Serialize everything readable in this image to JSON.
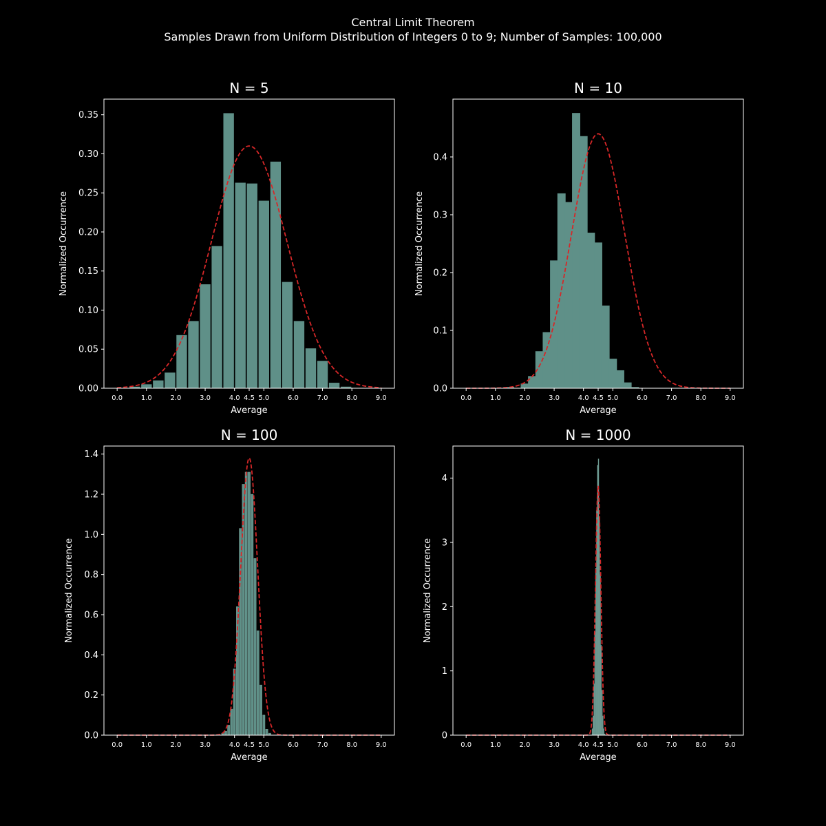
{
  "figure": {
    "title": "Central Limit Theorem",
    "subtitle": "Samples Drawn from Uniform Distribution of Integers 0 to 9; Number of Samples: 100,000"
  },
  "colors": {
    "background": "#000000",
    "bar": "#5f9088",
    "fit_line": "#d62728",
    "axis": "#ffffff"
  },
  "chart_data": [
    {
      "type": "bar",
      "title": "N = 5",
      "xlabel": "Average",
      "ylabel": "Normalized Occurrence",
      "xlim": [
        -0.45,
        9.45
      ],
      "ylim": [
        0,
        0.37
      ],
      "xticks": [
        0,
        1,
        2,
        3,
        4,
        4.5,
        5,
        6,
        7,
        8,
        9
      ],
      "xtick_labels": [
        "0.0",
        "1.0",
        "2.0",
        "3.0",
        "4.0",
        "4.5",
        "5.0",
        "6.0",
        "7.0",
        "8.0",
        "9.0"
      ],
      "yticks": [
        0,
        0.05,
        0.1,
        0.15,
        0.2,
        0.25,
        0.3,
        0.35
      ],
      "ytick_labels": [
        "0.00",
        "0.05",
        "0.10",
        "0.15",
        "0.20",
        "0.25",
        "0.30",
        "0.35"
      ],
      "bar_width": 0.36,
      "x": [
        0.0,
        0.2,
        0.4,
        0.6,
        0.8,
        1.0,
        1.2,
        1.4,
        1.6,
        1.8,
        2.0,
        2.2,
        2.4,
        2.6,
        2.8,
        3.0,
        3.2,
        3.4,
        3.6,
        3.8,
        4.0,
        4.2,
        4.4,
        4.6,
        4.8,
        5.0,
        5.2,
        5.4,
        5.6,
        5.8,
        6.0,
        6.2,
        6.4,
        6.6,
        6.8,
        7.0,
        7.2,
        7.4,
        7.6,
        7.8,
        8.0,
        8.2,
        8.4,
        8.6,
        8.8,
        9.0
      ],
      "values": [
        0.0,
        0.0,
        0.0,
        0.002,
        0.0,
        0.005,
        0.0,
        0.01,
        0.0,
        0.02,
        0.0,
        0.068,
        0.0,
        0.086,
        0.0,
        0.133,
        0.0,
        0.182,
        0.0,
        0.352,
        0.0,
        0.263,
        0.0,
        0.262,
        0.0,
        0.24,
        0.0,
        0.29,
        0.0,
        0.136,
        0.0,
        0.086,
        0.0,
        0.051,
        0.0,
        0.035,
        0.0,
        0.007,
        0.0,
        0.002,
        0.0,
        0.0,
        0.0,
        0.0,
        0.0,
        0.0
      ],
      "fit": {
        "type": "normal",
        "mean": 4.5,
        "std": 1.285,
        "peak": 0.31
      }
    },
    {
      "type": "bar",
      "title": "N = 10",
      "xlabel": "Average",
      "ylabel": "Normalized Occurrence",
      "xlim": [
        -0.45,
        9.45
      ],
      "ylim": [
        0,
        0.5
      ],
      "xticks": [
        0,
        1,
        2,
        3,
        4,
        4.5,
        5,
        6,
        7,
        8,
        9
      ],
      "xtick_labels": [
        "0.0",
        "1.0",
        "2.0",
        "3.0",
        "4.0",
        "4.5",
        "5.0",
        "6.0",
        "7.0",
        "8.0",
        "9.0"
      ],
      "yticks": [
        0,
        0.1,
        0.2,
        0.3,
        0.4
      ],
      "ytick_labels": [
        "0.0",
        "0.1",
        "0.2",
        "0.3",
        "0.4"
      ],
      "bar_width": 0.28,
      "x": [
        1.5,
        1.75,
        2.0,
        2.25,
        2.5,
        2.75,
        3.0,
        3.25,
        3.5,
        3.75,
        4.0,
        4.25,
        4.5,
        4.75,
        5.0,
        5.25,
        5.5,
        5.75,
        6.0,
        6.25,
        6.5,
        6.75,
        7.0,
        7.25
      ],
      "values": [
        0.002,
        0.0,
        0.008,
        0.021,
        0.064,
        0.097,
        0.221,
        0.337,
        0.322,
        0.476,
        0.436,
        0.269,
        0.252,
        0.143,
        0.051,
        0.031,
        0.01,
        0.002,
        0.0,
        0.0,
        0.0,
        0.0,
        0.0,
        0.0
      ],
      "x_offset": 0.25,
      "fit": {
        "type": "normal",
        "mean": 4.5,
        "std": 0.908,
        "peak": 0.44
      }
    },
    {
      "type": "bar",
      "title": "N = 100",
      "xlabel": "Average",
      "ylabel": "Normalized Occurrence",
      "xlim": [
        -0.45,
        9.45
      ],
      "ylim": [
        0,
        1.44
      ],
      "xticks": [
        0,
        1,
        2,
        3,
        4,
        4.5,
        5,
        6,
        7,
        8,
        9
      ],
      "xtick_labels": [
        "0.0",
        "1.0",
        "2.0",
        "3.0",
        "4.0",
        "4.5",
        "5.0",
        "6.0",
        "7.0",
        "8.0",
        "9.0"
      ],
      "yticks": [
        0,
        0.2,
        0.4,
        0.6,
        0.8,
        1.0,
        1.2,
        1.4
      ],
      "ytick_labels": [
        "0.0",
        "0.2",
        "0.4",
        "0.6",
        "0.8",
        "1.0",
        "1.2",
        "1.4"
      ],
      "bar_width": 0.08,
      "x": [
        3.6,
        3.7,
        3.8,
        3.9,
        4.0,
        4.1,
        4.2,
        4.3,
        4.4,
        4.5,
        4.6,
        4.7,
        4.8,
        4.9,
        5.0,
        5.1,
        5.2,
        5.3,
        5.4
      ],
      "values": [
        0.01,
        0.02,
        0.05,
        0.13,
        0.33,
        0.64,
        1.03,
        1.25,
        1.31,
        1.31,
        1.2,
        0.88,
        0.52,
        0.25,
        0.1,
        0.03,
        0.01,
        0.0,
        0.0
      ],
      "fit": {
        "type": "normal",
        "mean": 4.5,
        "std": 0.289,
        "peak": 1.38
      }
    },
    {
      "type": "bar",
      "title": "N = 1000",
      "xlabel": "Average",
      "ylabel": "Normalized Occurrence",
      "xlim": [
        -0.45,
        9.45
      ],
      "ylim": [
        0,
        4.5
      ],
      "xticks": [
        0,
        1,
        2,
        3,
        4,
        4.5,
        5,
        6,
        7,
        8,
        9
      ],
      "xtick_labels": [
        "0.0",
        "1.0",
        "2.0",
        "3.0",
        "4.0",
        "4.5",
        "5.0",
        "6.0",
        "7.0",
        "8.0",
        "9.0"
      ],
      "yticks": [
        0,
        1,
        2,
        3,
        4
      ],
      "ytick_labels": [
        "0",
        "1",
        "2",
        "3",
        "4"
      ],
      "bar_width": 0.02,
      "x": [
        4.3,
        4.33,
        4.36,
        4.39,
        4.42,
        4.45,
        4.48,
        4.51,
        4.54,
        4.57,
        4.6,
        4.63,
        4.66,
        4.69,
        4.72
      ],
      "values": [
        0.1,
        0.3,
        0.8,
        1.6,
        2.6,
        3.5,
        4.2,
        4.3,
        3.4,
        2.5,
        1.4,
        0.7,
        0.3,
        0.1,
        0.02
      ],
      "fit": {
        "type": "normal",
        "mean": 4.5,
        "std": 0.0908,
        "peak": 3.88
      }
    }
  ]
}
